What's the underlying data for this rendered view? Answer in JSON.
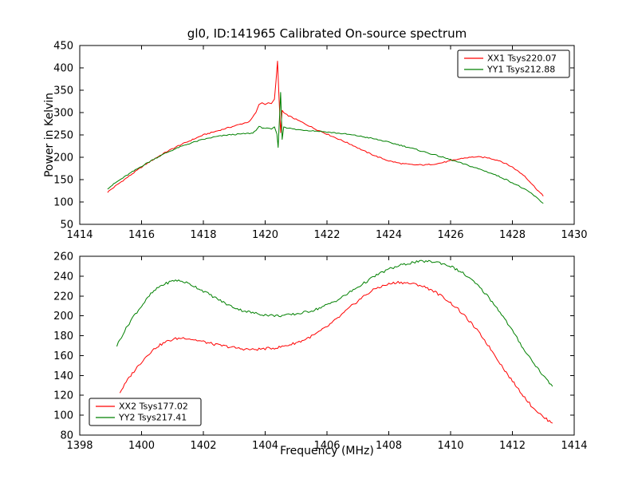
{
  "figure": {
    "background": "#ffffff",
    "axes_color": "#000000"
  },
  "chart_data": [
    {
      "type": "line",
      "title": "gl0, ID:141965 Calibrated On-source spectrum",
      "xlabel": "",
      "ylabel": "Power in Kelvin",
      "xlim": [
        1414,
        1430
      ],
      "ylim": [
        50,
        450
      ],
      "xticks": [
        1414,
        1416,
        1418,
        1420,
        1422,
        1424,
        1426,
        1428,
        1430
      ],
      "yticks": [
        50,
        100,
        150,
        200,
        250,
        300,
        350,
        400,
        450
      ],
      "grid": false,
      "legend_position": "upper right",
      "series": [
        {
          "name": "XX1 Tsys220.07",
          "color": "#ff0000",
          "points": [
            [
              1414.9,
              122
            ],
            [
              1415.2,
              138
            ],
            [
              1415.6,
              158
            ],
            [
              1416.0,
              178
            ],
            [
              1416.4,
              196
            ],
            [
              1416.8,
              212
            ],
            [
              1417.2,
              226
            ],
            [
              1417.6,
              238
            ],
            [
              1418.0,
              250
            ],
            [
              1418.4,
              258
            ],
            [
              1418.8,
              266
            ],
            [
              1419.2,
              274
            ],
            [
              1419.5,
              280
            ],
            [
              1419.7,
              300
            ],
            [
              1419.8,
              318
            ],
            [
              1419.9,
              322
            ],
            [
              1420.0,
              318
            ],
            [
              1420.1,
              322
            ],
            [
              1420.2,
              320
            ],
            [
              1420.3,
              330
            ],
            [
              1420.35,
              370
            ],
            [
              1420.4,
              415
            ],
            [
              1420.45,
              330
            ],
            [
              1420.5,
              255
            ],
            [
              1420.55,
              305
            ],
            [
              1420.6,
              300
            ],
            [
              1420.7,
              295
            ],
            [
              1420.9,
              288
            ],
            [
              1421.2,
              278
            ],
            [
              1421.6,
              264
            ],
            [
              1422.0,
              252
            ],
            [
              1422.4,
              240
            ],
            [
              1422.8,
              228
            ],
            [
              1423.2,
              214
            ],
            [
              1423.6,
              202
            ],
            [
              1424.0,
              192
            ],
            [
              1424.4,
              186
            ],
            [
              1424.8,
              183
            ],
            [
              1425.2,
              183
            ],
            [
              1425.6,
              186
            ],
            [
              1426.0,
              192
            ],
            [
              1426.4,
              198
            ],
            [
              1426.8,
              201
            ],
            [
              1427.2,
              199
            ],
            [
              1427.6,
              192
            ],
            [
              1428.0,
              178
            ],
            [
              1428.4,
              158
            ],
            [
              1428.7,
              135
            ],
            [
              1429.0,
              113
            ]
          ]
        },
        {
          "name": "YY1 Tsys212.88",
          "color": "#008000",
          "points": [
            [
              1414.9,
              130
            ],
            [
              1415.2,
              145
            ],
            [
              1415.6,
              163
            ],
            [
              1416.0,
              180
            ],
            [
              1416.4,
              196
            ],
            [
              1416.8,
              210
            ],
            [
              1417.2,
              222
            ],
            [
              1417.6,
              232
            ],
            [
              1418.0,
              240
            ],
            [
              1418.4,
              246
            ],
            [
              1418.8,
              250
            ],
            [
              1419.2,
              252
            ],
            [
              1419.6,
              254
            ],
            [
              1419.8,
              268
            ],
            [
              1420.0,
              265
            ],
            [
              1420.2,
              263
            ],
            [
              1420.3,
              268
            ],
            [
              1420.38,
              252
            ],
            [
              1420.42,
              222
            ],
            [
              1420.5,
              345
            ],
            [
              1420.55,
              240
            ],
            [
              1420.6,
              268
            ],
            [
              1420.7,
              266
            ],
            [
              1421.0,
              262
            ],
            [
              1421.4,
              260
            ],
            [
              1421.8,
              258
            ],
            [
              1422.2,
              255
            ],
            [
              1422.6,
              252
            ],
            [
              1423.0,
              248
            ],
            [
              1423.4,
              243
            ],
            [
              1423.8,
              237
            ],
            [
              1424.2,
              230
            ],
            [
              1424.6,
              223
            ],
            [
              1425.0,
              215
            ],
            [
              1425.4,
              207
            ],
            [
              1425.8,
              199
            ],
            [
              1426.2,
              190
            ],
            [
              1426.6,
              181
            ],
            [
              1427.0,
              172
            ],
            [
              1427.4,
              162
            ],
            [
              1427.8,
              150
            ],
            [
              1428.2,
              136
            ],
            [
              1428.6,
              120
            ],
            [
              1429.0,
              97
            ]
          ]
        }
      ]
    },
    {
      "type": "line",
      "title": "",
      "xlabel": "Frequency (MHz)",
      "ylabel": "",
      "xlim": [
        1398,
        1414
      ],
      "ylim": [
        80,
        260
      ],
      "xticks": [
        1398,
        1400,
        1402,
        1404,
        1406,
        1408,
        1410,
        1412,
        1414
      ],
      "yticks": [
        80,
        100,
        120,
        140,
        160,
        180,
        200,
        220,
        240,
        260
      ],
      "grid": false,
      "legend_position": "lower left",
      "series": [
        {
          "name": "XX2 Tsys177.02",
          "color": "#ff0000",
          "points": [
            [
              1399.3,
              123
            ],
            [
              1399.6,
              138
            ],
            [
              1399.9,
              150
            ],
            [
              1400.2,
              161
            ],
            [
              1400.5,
              169
            ],
            [
              1400.8,
              174
            ],
            [
              1401.1,
              177
            ],
            [
              1401.4,
              178
            ],
            [
              1401.7,
              176
            ],
            [
              1402.0,
              174
            ],
            [
              1402.4,
              171
            ],
            [
              1402.8,
              169
            ],
            [
              1403.2,
              167
            ],
            [
              1403.6,
              166
            ],
            [
              1404.0,
              167
            ],
            [
              1404.4,
              168
            ],
            [
              1404.8,
              171
            ],
            [
              1405.2,
              175
            ],
            [
              1405.6,
              181
            ],
            [
              1406.0,
              189
            ],
            [
              1406.4,
              199
            ],
            [
              1406.8,
              210
            ],
            [
              1407.2,
              220
            ],
            [
              1407.6,
              228
            ],
            [
              1408.0,
              232
            ],
            [
              1408.3,
              234
            ],
            [
              1408.6,
              233
            ],
            [
              1409.0,
              231
            ],
            [
              1409.4,
              226
            ],
            [
              1409.8,
              218
            ],
            [
              1410.2,
              208
            ],
            [
              1410.6,
              195
            ],
            [
              1411.0,
              180
            ],
            [
              1411.4,
              162
            ],
            [
              1411.8,
              143
            ],
            [
              1412.2,
              126
            ],
            [
              1412.6,
              110
            ],
            [
              1413.0,
              98
            ],
            [
              1413.3,
              92
            ]
          ]
        },
        {
          "name": "YY2 Tsys217.41",
          "color": "#008000",
          "points": [
            [
              1399.2,
              170
            ],
            [
              1399.4,
              182
            ],
            [
              1399.7,
              198
            ],
            [
              1400.0,
              210
            ],
            [
              1400.3,
              222
            ],
            [
              1400.6,
              230
            ],
            [
              1400.9,
              234
            ],
            [
              1401.1,
              236
            ],
            [
              1401.4,
              234
            ],
            [
              1401.7,
              230
            ],
            [
              1402.0,
              225
            ],
            [
              1402.4,
              218
            ],
            [
              1402.8,
              211
            ],
            [
              1403.2,
              206
            ],
            [
              1403.6,
              203
            ],
            [
              1404.0,
              201
            ],
            [
              1404.4,
              200
            ],
            [
              1404.8,
              201
            ],
            [
              1405.2,
              203
            ],
            [
              1405.6,
              206
            ],
            [
              1406.0,
              211
            ],
            [
              1406.4,
              217
            ],
            [
              1406.8,
              225
            ],
            [
              1407.2,
              233
            ],
            [
              1407.6,
              241
            ],
            [
              1408.0,
              247
            ],
            [
              1408.4,
              251
            ],
            [
              1408.8,
              254
            ],
            [
              1409.2,
              255
            ],
            [
              1409.6,
              254
            ],
            [
              1410.0,
              250
            ],
            [
              1410.4,
              243
            ],
            [
              1410.8,
              233
            ],
            [
              1411.2,
              220
            ],
            [
              1411.6,
              204
            ],
            [
              1412.0,
              185
            ],
            [
              1412.4,
              165
            ],
            [
              1412.8,
              148
            ],
            [
              1413.1,
              136
            ],
            [
              1413.3,
              129
            ]
          ]
        }
      ]
    }
  ]
}
